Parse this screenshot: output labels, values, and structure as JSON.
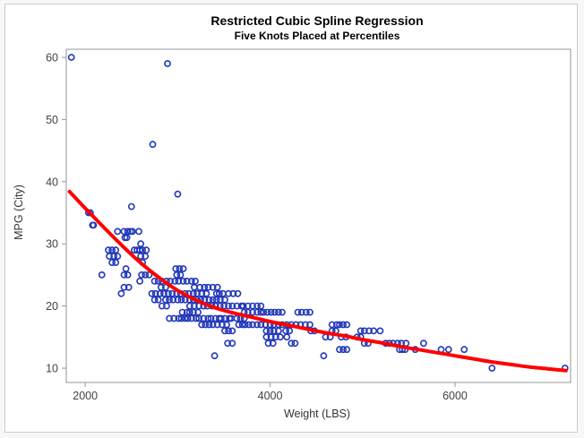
{
  "chart_data": {
    "type": "scatter",
    "title": "Restricted Cubic Spline Regression",
    "subtitle": "Five Knots Placed at Percentiles",
    "xlabel": "Weight (LBS)",
    "ylabel": "MPG (City)",
    "xlim": [
      1795,
      7250
    ],
    "ylim": [
      7.7,
      61.3
    ],
    "x_ticks": [
      2000,
      4000,
      6000
    ],
    "y_ticks": [
      10,
      20,
      30,
      40,
      50,
      60
    ],
    "grid": false,
    "legend": "none",
    "frame_color": "#949494",
    "marker": {
      "shape": "open-circle",
      "color": "#2137b8",
      "radius": 3.1,
      "stroke_width": 1.6
    },
    "spline": {
      "color": "#ff0000",
      "width": 4,
      "points": [
        [
          1830,
          38.4
        ],
        [
          1950,
          36.5
        ],
        [
          2100,
          34.2
        ],
        [
          2250,
          31.9
        ],
        [
          2400,
          29.7
        ],
        [
          2550,
          27.6
        ],
        [
          2700,
          25.7
        ],
        [
          2850,
          24.0
        ],
        [
          3000,
          22.5
        ],
        [
          3150,
          21.3
        ],
        [
          3300,
          20.3
        ],
        [
          3450,
          19.5
        ],
        [
          3600,
          18.9
        ],
        [
          3800,
          18.2
        ],
        [
          4000,
          17.5
        ],
        [
          4200,
          16.9
        ],
        [
          4400,
          16.3
        ],
        [
          4600,
          15.7
        ],
        [
          4800,
          15.2
        ],
        [
          5000,
          14.6
        ],
        [
          5200,
          14.1
        ],
        [
          5400,
          13.5
        ],
        [
          5600,
          13.0
        ],
        [
          5800,
          12.5
        ],
        [
          6000,
          12.0
        ],
        [
          6200,
          11.5
        ],
        [
          6400,
          11.0
        ],
        [
          6600,
          10.6
        ],
        [
          6800,
          10.2
        ],
        [
          7000,
          9.9
        ],
        [
          7200,
          9.6
        ]
      ]
    },
    "points": [
      [
        1850,
        60
      ],
      [
        2890,
        59
      ],
      [
        2730,
        46
      ],
      [
        3000,
        38
      ],
      [
        2500,
        36
      ],
      [
        2035,
        35
      ],
      [
        2055,
        35
      ],
      [
        2080,
        33
      ],
      [
        2090,
        33
      ],
      [
        2350,
        32
      ],
      [
        2420,
        32
      ],
      [
        2460,
        32
      ],
      [
        2490,
        32
      ],
      [
        2510,
        32
      ],
      [
        2580,
        32
      ],
      [
        2430,
        31
      ],
      [
        2450,
        31
      ],
      [
        2600,
        30
      ],
      [
        2250,
        29
      ],
      [
        2290,
        29
      ],
      [
        2330,
        29
      ],
      [
        2530,
        29
      ],
      [
        2560,
        29
      ],
      [
        2590,
        29
      ],
      [
        2620,
        29
      ],
      [
        2660,
        29
      ],
      [
        2260,
        28
      ],
      [
        2310,
        28
      ],
      [
        2350,
        28
      ],
      [
        2600,
        28
      ],
      [
        2650,
        28
      ],
      [
        2290,
        27
      ],
      [
        2330,
        27
      ],
      [
        2620,
        27
      ],
      [
        2440,
        26
      ],
      [
        2980,
        26
      ],
      [
        3020,
        26
      ],
      [
        3060,
        26
      ],
      [
        2180,
        25
      ],
      [
        2420,
        25
      ],
      [
        2460,
        25
      ],
      [
        2610,
        25
      ],
      [
        2650,
        25
      ],
      [
        2690,
        25
      ],
      [
        2990,
        25
      ],
      [
        3030,
        25
      ],
      [
        2590,
        24
      ],
      [
        2750,
        24
      ],
      [
        2790,
        24
      ],
      [
        2830,
        24
      ],
      [
        2880,
        24
      ],
      [
        2920,
        24
      ],
      [
        2970,
        24
      ],
      [
        3010,
        24
      ],
      [
        3060,
        24
      ],
      [
        3100,
        24
      ],
      [
        3150,
        24
      ],
      [
        3190,
        24
      ],
      [
        2420,
        23
      ],
      [
        2470,
        23
      ],
      [
        2820,
        23
      ],
      [
        2870,
        23
      ],
      [
        3180,
        23
      ],
      [
        3240,
        23
      ],
      [
        3290,
        23
      ],
      [
        3330,
        23
      ],
      [
        3380,
        23
      ],
      [
        3430,
        23
      ],
      [
        2390,
        22
      ],
      [
        2720,
        22
      ],
      [
        2760,
        22
      ],
      [
        2810,
        22
      ],
      [
        2850,
        22
      ],
      [
        2900,
        22
      ],
      [
        2940,
        22
      ],
      [
        2990,
        22
      ],
      [
        3030,
        22
      ],
      [
        3080,
        22
      ],
      [
        3120,
        22
      ],
      [
        3170,
        22
      ],
      [
        3210,
        22
      ],
      [
        3260,
        22
      ],
      [
        3310,
        22
      ],
      [
        3420,
        22
      ],
      [
        3450,
        22
      ],
      [
        3490,
        22
      ],
      [
        3550,
        22
      ],
      [
        3600,
        22
      ],
      [
        3650,
        22
      ],
      [
        2750,
        21
      ],
      [
        2790,
        21
      ],
      [
        2870,
        21
      ],
      [
        2910,
        21
      ],
      [
        2950,
        21
      ],
      [
        3000,
        21
      ],
      [
        3040,
        21
      ],
      [
        3080,
        21
      ],
      [
        3130,
        21
      ],
      [
        3170,
        21
      ],
      [
        3210,
        21
      ],
      [
        3250,
        21
      ],
      [
        3290,
        21
      ],
      [
        3340,
        21
      ],
      [
        3380,
        21
      ],
      [
        3420,
        21
      ],
      [
        3460,
        21
      ],
      [
        3510,
        21
      ],
      [
        2830,
        20
      ],
      [
        2880,
        20
      ],
      [
        3130,
        20
      ],
      [
        3180,
        20
      ],
      [
        3230,
        20
      ],
      [
        3280,
        20
      ],
      [
        3320,
        20
      ],
      [
        3370,
        20
      ],
      [
        3410,
        20
      ],
      [
        3460,
        20
      ],
      [
        3500,
        20
      ],
      [
        3550,
        20
      ],
      [
        3590,
        20
      ],
      [
        3640,
        20
      ],
      [
        3690,
        20
      ],
      [
        3710,
        20
      ],
      [
        3760,
        20
      ],
      [
        3810,
        20
      ],
      [
        3860,
        20
      ],
      [
        3900,
        20
      ],
      [
        3050,
        19
      ],
      [
        3100,
        19
      ],
      [
        3130,
        19
      ],
      [
        3170,
        19
      ],
      [
        3220,
        19
      ],
      [
        3720,
        19
      ],
      [
        3760,
        19
      ],
      [
        3810,
        19
      ],
      [
        3860,
        19
      ],
      [
        3900,
        19
      ],
      [
        3930,
        19
      ],
      [
        3970,
        19
      ],
      [
        4010,
        19
      ],
      [
        4050,
        19
      ],
      [
        4090,
        19
      ],
      [
        4130,
        19
      ],
      [
        4300,
        19
      ],
      [
        4340,
        19
      ],
      [
        4390,
        19
      ],
      [
        4430,
        19
      ],
      [
        2910,
        18
      ],
      [
        2960,
        18
      ],
      [
        3010,
        18
      ],
      [
        3040,
        18
      ],
      [
        3080,
        18
      ],
      [
        3110,
        18
      ],
      [
        3150,
        18
      ],
      [
        3200,
        18
      ],
      [
        3230,
        18
      ],
      [
        3280,
        18
      ],
      [
        3330,
        18
      ],
      [
        3360,
        18
      ],
      [
        3410,
        18
      ],
      [
        3450,
        18
      ],
      [
        3470,
        18
      ],
      [
        3510,
        18
      ],
      [
        3560,
        18
      ],
      [
        3580,
        18
      ],
      [
        3640,
        18
      ],
      [
        3680,
        18
      ],
      [
        3720,
        18
      ],
      [
        3260,
        17
      ],
      [
        3300,
        17
      ],
      [
        3340,
        17
      ],
      [
        3380,
        17
      ],
      [
        3430,
        17
      ],
      [
        3480,
        17
      ],
      [
        3530,
        17
      ],
      [
        3660,
        17
      ],
      [
        3700,
        17
      ],
      [
        3730,
        17
      ],
      [
        3770,
        17
      ],
      [
        3810,
        17
      ],
      [
        3860,
        17
      ],
      [
        3900,
        17
      ],
      [
        3950,
        17
      ],
      [
        4000,
        17
      ],
      [
        4040,
        17
      ],
      [
        4090,
        17
      ],
      [
        4130,
        17
      ],
      [
        4180,
        17
      ],
      [
        4230,
        17
      ],
      [
        4280,
        17
      ],
      [
        4330,
        17
      ],
      [
        4380,
        17
      ],
      [
        4430,
        17
      ],
      [
        4670,
        17
      ],
      [
        4720,
        17
      ],
      [
        4750,
        17
      ],
      [
        4790,
        17
      ],
      [
        4830,
        17
      ],
      [
        3510,
        16
      ],
      [
        3550,
        16
      ],
      [
        3590,
        16
      ],
      [
        3960,
        16
      ],
      [
        4000,
        16
      ],
      [
        4040,
        16
      ],
      [
        4090,
        16
      ],
      [
        4170,
        16
      ],
      [
        4210,
        16
      ],
      [
        4440,
        16
      ],
      [
        4480,
        16
      ],
      [
        4670,
        16
      ],
      [
        4710,
        16
      ],
      [
        4980,
        16
      ],
      [
        5020,
        16
      ],
      [
        5070,
        16
      ],
      [
        5120,
        16
      ],
      [
        5190,
        16
      ],
      [
        3960,
        15
      ],
      [
        4010,
        15
      ],
      [
        4060,
        15
      ],
      [
        4110,
        15
      ],
      [
        4180,
        15
      ],
      [
        4600,
        15
      ],
      [
        4650,
        15
      ],
      [
        4770,
        15
      ],
      [
        4820,
        15
      ],
      [
        4940,
        15
      ],
      [
        4980,
        15
      ],
      [
        3540,
        14
      ],
      [
        3590,
        14
      ],
      [
        4230,
        14
      ],
      [
        4270,
        14
      ],
      [
        3980,
        14
      ],
      [
        4030,
        14
      ],
      [
        5020,
        14
      ],
      [
        5060,
        14
      ],
      [
        5250,
        14
      ],
      [
        5290,
        14
      ],
      [
        5330,
        14
      ],
      [
        5380,
        14
      ],
      [
        5420,
        14
      ],
      [
        5470,
        14
      ],
      [
        5660,
        14
      ],
      [
        4750,
        13
      ],
      [
        4790,
        13
      ],
      [
        4830,
        13
      ],
      [
        5400,
        13
      ],
      [
        5430,
        13
      ],
      [
        5460,
        13
      ],
      [
        5570,
        13
      ],
      [
        5850,
        13
      ],
      [
        5930,
        13
      ],
      [
        6100,
        13
      ],
      [
        3400,
        12
      ],
      [
        4580,
        12
      ],
      [
        6400,
        10
      ],
      [
        7190,
        10
      ]
    ]
  },
  "figure": {
    "title": "Restricted Cubic Spline Regression",
    "subtitle": "Five Knots Placed at Percentiles",
    "xlabel": "Weight (LBS)",
    "ylabel": "MPG (City)"
  }
}
